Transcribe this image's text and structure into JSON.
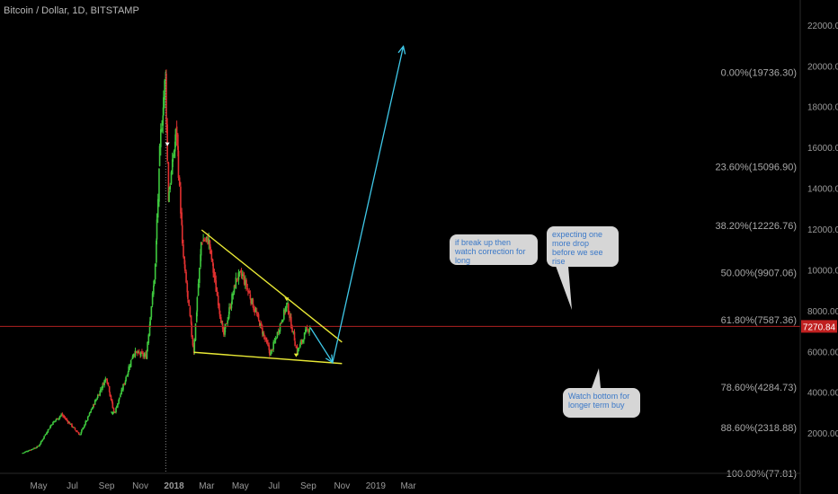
{
  "symbol_title": "Bitcoin / Dollar, 1D, BITSTAMP",
  "chart_data": {
    "type": "candlestick",
    "title": "Bitcoin / Dollar, 1D, BITSTAMP",
    "x_ticks": [
      "May",
      "Jul",
      "Sep",
      "Nov",
      "2018",
      "Mar",
      "May",
      "Jul",
      "Sep",
      "Nov",
      "2019",
      "Mar"
    ],
    "y_ticks": [
      2000,
      4000,
      6000,
      8000,
      10000,
      12000,
      14000,
      16000,
      18000,
      20000,
      22000
    ],
    "y_tick_labels": [
      "2000.00",
      "4000.00",
      "6000.00",
      "8000.00",
      "10000.00",
      "12000.00",
      "14000.00",
      "16000.00",
      "18000.00",
      "20000.00",
      "22000.00"
    ],
    "ylim": [
      0,
      23000
    ],
    "price_path": [
      {
        "date": "2017-04-01",
        "price": 1050
      },
      {
        "date": "2017-05-01",
        "price": 1400
      },
      {
        "date": "2017-05-25",
        "price": 2500
      },
      {
        "date": "2017-06-12",
        "price": 2950
      },
      {
        "date": "2017-07-15",
        "price": 1950
      },
      {
        "date": "2017-08-05",
        "price": 3200
      },
      {
        "date": "2017-09-01",
        "price": 4800
      },
      {
        "date": "2017-09-15",
        "price": 3000
      },
      {
        "date": "2017-10-01",
        "price": 4300
      },
      {
        "date": "2017-10-20",
        "price": 6000
      },
      {
        "date": "2017-11-12",
        "price": 5800
      },
      {
        "date": "2017-11-28",
        "price": 10000
      },
      {
        "date": "2017-12-08",
        "price": 16500
      },
      {
        "date": "2017-12-17",
        "price": 19700
      },
      {
        "date": "2017-12-22",
        "price": 13500
      },
      {
        "date": "2018-01-06",
        "price": 17000
      },
      {
        "date": "2018-01-17",
        "price": 11000
      },
      {
        "date": "2018-02-06",
        "price": 6000
      },
      {
        "date": "2018-02-20",
        "price": 11500
      },
      {
        "date": "2018-03-05",
        "price": 11500
      },
      {
        "date": "2018-04-01",
        "price": 6800
      },
      {
        "date": "2018-04-25",
        "price": 9700
      },
      {
        "date": "2018-05-05",
        "price": 9800
      },
      {
        "date": "2018-06-25",
        "price": 5900
      },
      {
        "date": "2018-07-25",
        "price": 8400
      },
      {
        "date": "2018-08-12",
        "price": 6000
      },
      {
        "date": "2018-08-28",
        "price": 7000
      },
      {
        "date": "2018-09-05",
        "price": 7270
      }
    ],
    "last_price": 7270.84,
    "last_price_label": "7270.84",
    "fibonacci_levels": [
      {
        "label": "0.00%(19736.30)",
        "value": 19736.3
      },
      {
        "label": "23.60%(15096.90)",
        "value": 15096.9
      },
      {
        "label": "38.20%(12226.76)",
        "value": 12226.76
      },
      {
        "label": "50.00%(9907.06)",
        "value": 9907.06
      },
      {
        "label": "61.80%(7587.36)",
        "value": 7587.36
      },
      {
        "label": "78.60%(4284.73)",
        "value": 4284.73
      },
      {
        "label": "88.60%(2318.88)",
        "value": 2318.88
      },
      {
        "label": "100.00%(77.81)",
        "value": 77.81
      }
    ],
    "trendlines": [
      {
        "name": "upper",
        "from": {
          "date": "2018-02-20",
          "price": 12000
        },
        "to": {
          "date": "2018-11-01",
          "price": 6500
        }
      },
      {
        "name": "lower",
        "from": {
          "date": "2018-02-06",
          "price": 6000
        },
        "to": {
          "date": "2018-11-01",
          "price": 5450
        }
      }
    ],
    "projection": [
      {
        "date": "2018-09-05",
        "price": 7200
      },
      {
        "date": "2018-10-15",
        "price": 5500
      },
      {
        "date": "2019-02-20",
        "price": 21000
      }
    ],
    "grid": false,
    "legend": "none"
  },
  "annotations": [
    {
      "text": "if break up then watch correction for long"
    },
    {
      "text": "expecting one more drop before we see rise"
    },
    {
      "text": "Watch bottom for longer term buy"
    }
  ],
  "colors": {
    "background": "#000000",
    "up_candle": "#3ec83e",
    "down_candle": "#e03030",
    "trendline": "#e8e835",
    "projection_arrow": "#3fc8e8",
    "price_line": "#b02020",
    "price_badge": "#c02020",
    "bubble_fill": "#d6d6d6",
    "bubble_text": "#3a78c8"
  }
}
